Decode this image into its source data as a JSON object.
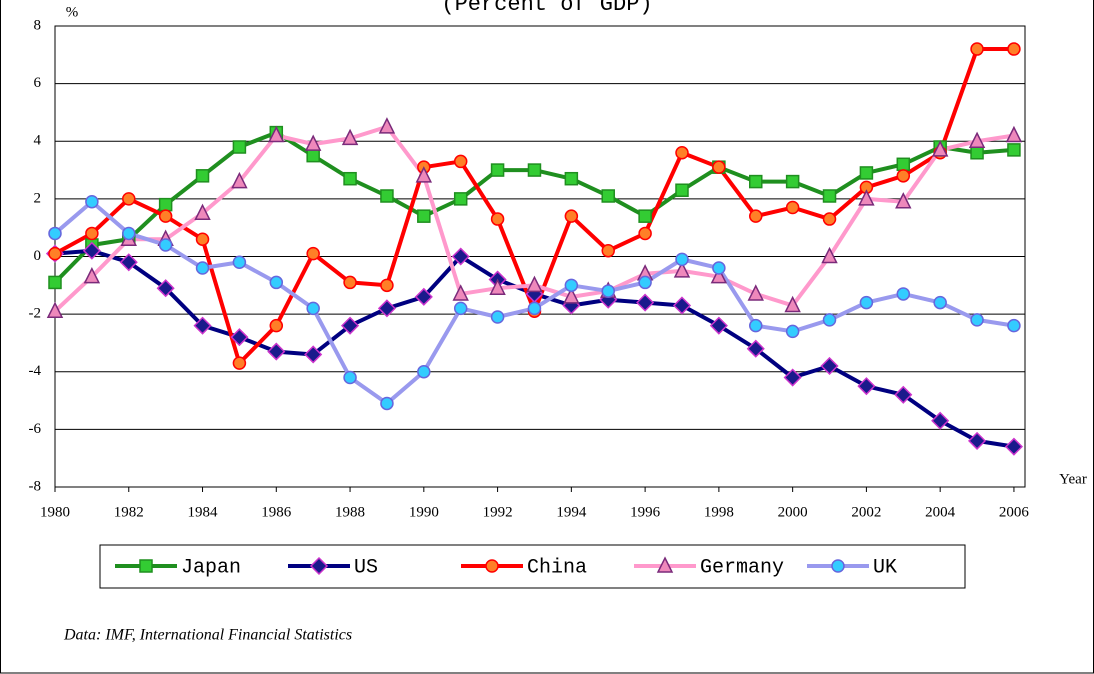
{
  "chart_data": {
    "type": "line",
    "title": "(Percent of GDP)",
    "y_label": "%",
    "x_label": "Year",
    "note": "Data: IMF, International Financial Statistics",
    "x": [
      1980,
      1981,
      1982,
      1983,
      1984,
      1985,
      1986,
      1987,
      1988,
      1989,
      1990,
      1991,
      1992,
      1993,
      1994,
      1995,
      1996,
      1997,
      1998,
      1999,
      2000,
      2001,
      2002,
      2003,
      2004,
      2005,
      2006
    ],
    "xlim": [
      1980,
      2006.3
    ],
    "xticks": [
      1980,
      1982,
      1984,
      1986,
      1988,
      1990,
      1992,
      1994,
      1996,
      1998,
      2000,
      2002,
      2004,
      2006
    ],
    "ylim": [
      -8,
      8
    ],
    "yticks": [
      -8,
      -6,
      -4,
      -2,
      0,
      2,
      4,
      6,
      8
    ],
    "grid": true,
    "series": [
      {
        "name": "Japan",
        "color": "#1f8f1f",
        "marker": "square",
        "marker_color": "#33cc33",
        "values": [
          -0.9,
          0.4,
          0.6,
          1.8,
          2.8,
          3.8,
          4.3,
          3.5,
          2.7,
          2.1,
          1.4,
          2.0,
          3.0,
          3.0,
          2.7,
          2.1,
          1.4,
          2.3,
          3.1,
          2.6,
          2.6,
          2.1,
          2.9,
          3.2,
          3.8,
          3.6,
          3.7
        ]
      },
      {
        "name": "US",
        "color": "#000080",
        "marker": "diamond",
        "marker_color": "#1a1a8c",
        "values": [
          0.1,
          0.2,
          -0.2,
          -1.1,
          -2.4,
          -2.8,
          -3.3,
          -3.4,
          -2.4,
          -1.8,
          -1.4,
          0.0,
          -0.8,
          -1.3,
          -1.7,
          -1.5,
          -1.6,
          -1.7,
          -2.4,
          -3.2,
          -4.2,
          -3.8,
          -4.5,
          -4.8,
          -5.7,
          -6.4,
          -6.6
        ]
      },
      {
        "name": "China",
        "color": "#ff0000",
        "marker": "circle",
        "marker_color": "#ff7f27",
        "values": [
          0.1,
          0.8,
          2.0,
          1.4,
          0.6,
          -3.7,
          -2.4,
          0.1,
          -0.9,
          -1.0,
          3.1,
          3.3,
          1.3,
          -1.9,
          1.4,
          0.2,
          0.8,
          3.6,
          3.1,
          1.4,
          1.7,
          1.3,
          2.4,
          2.8,
          3.6,
          7.2,
          7.2
        ]
      },
      {
        "name": "Germany",
        "color": "#ff99cc",
        "marker": "triangle",
        "marker_color": "#ee88bb",
        "values": [
          -1.9,
          -0.7,
          0.6,
          0.6,
          1.5,
          2.6,
          4.2,
          3.9,
          4.1,
          4.5,
          2.8,
          -1.3,
          -1.1,
          -1.0,
          -1.4,
          -1.2,
          -0.6,
          -0.5,
          -0.7,
          -1.3,
          -1.7,
          0.0,
          2.0,
          1.9,
          3.7,
          4.0,
          4.2
        ]
      },
      {
        "name": "UK",
        "color": "#9999ee",
        "marker": "circle",
        "marker_color": "#33ccff",
        "values": [
          0.8,
          1.9,
          0.8,
          0.4,
          -0.4,
          -0.2,
          -0.9,
          -1.8,
          -4.2,
          -5.1,
          -4.0,
          -1.8,
          -2.1,
          -1.8,
          -1.0,
          -1.2,
          -0.9,
          -0.1,
          -0.4,
          -2.4,
          -2.6,
          -2.2,
          -1.6,
          -1.3,
          -1.6,
          -2.2,
          -2.4
        ]
      }
    ]
  }
}
